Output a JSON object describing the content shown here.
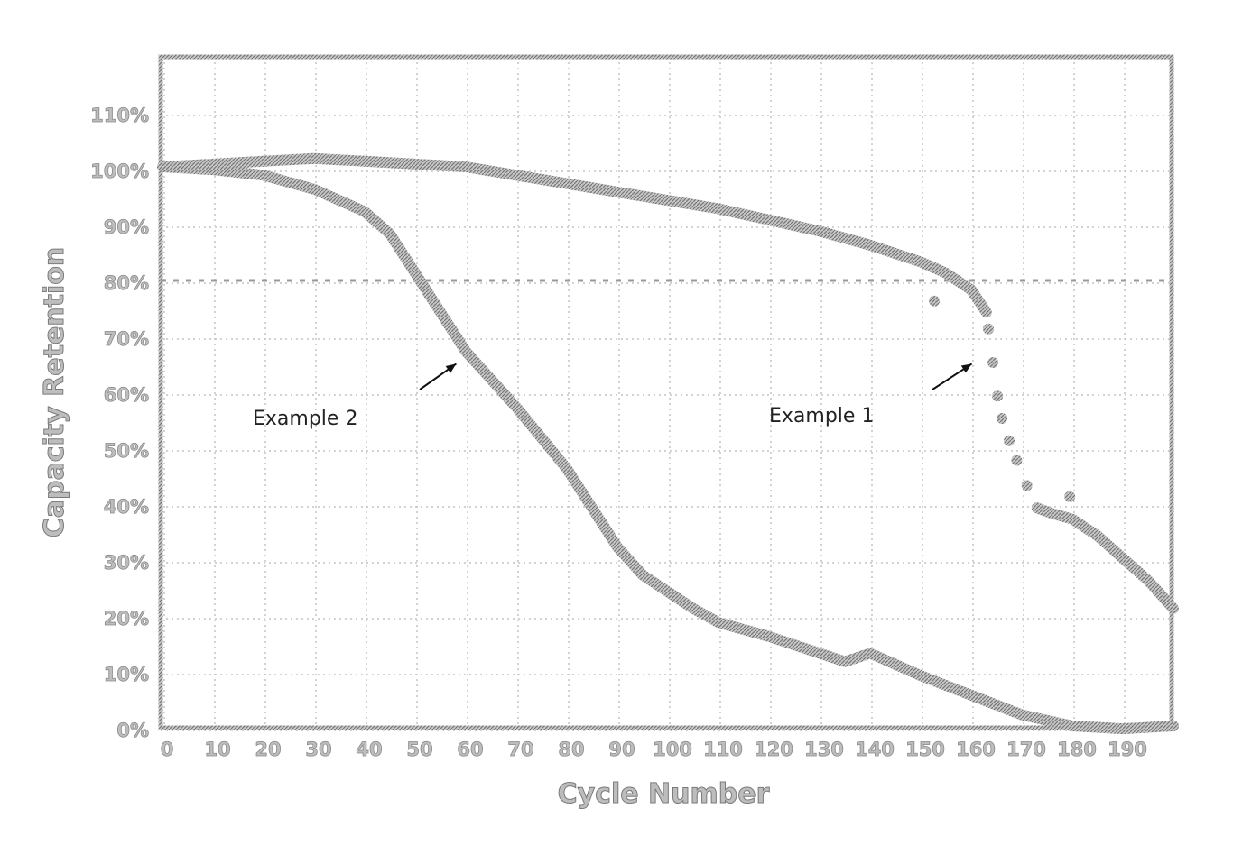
{
  "chart_data": {
    "type": "line",
    "title": "",
    "xlabel": "Cycle Number",
    "ylabel": "Capacity Retention",
    "xlim": [
      0,
      200
    ],
    "ylim": [
      0,
      120
    ],
    "x_ticks": [
      0,
      10,
      20,
      30,
      40,
      50,
      60,
      70,
      80,
      90,
      100,
      110,
      120,
      130,
      140,
      150,
      160,
      170,
      180,
      190
    ],
    "y_ticks": [
      0,
      10,
      20,
      30,
      40,
      50,
      60,
      70,
      80,
      90,
      100,
      110
    ],
    "y_tick_labels": [
      "0%",
      "10%",
      "20%",
      "30%",
      "40%",
      "50%",
      "60%",
      "70%",
      "80%",
      "90%",
      "100%",
      "110%"
    ],
    "grid": true,
    "reference_line": {
      "y": 80,
      "style": "dashed"
    },
    "series": [
      {
        "name": "Example 1",
        "x": [
          0,
          10,
          20,
          30,
          40,
          50,
          60,
          70,
          80,
          90,
          100,
          110,
          120,
          130,
          140,
          150,
          155,
          160,
          163
        ],
        "y": [
          100,
          100.5,
          101,
          101.5,
          101,
          100.5,
          100,
          98.5,
          97,
          95.5,
          94,
          92.5,
          90.5,
          88.5,
          86,
          83,
          81,
          78,
          74
        ],
        "scatter": {
          "x": [
            152.7,
            163.4,
            164.3,
            165.2,
            166.1,
            167.5,
            169,
            171,
            179.5
          ],
          "y": [
            76,
            71,
            65,
            59,
            55,
            51,
            47.5,
            43,
            41
          ]
        },
        "tail": {
          "x": [
            173,
            176,
            180,
            185,
            190,
            195,
            200
          ],
          "y": [
            39,
            38,
            37,
            34,
            30,
            26,
            21
          ]
        }
      },
      {
        "name": "Example 2",
        "x": [
          0,
          10,
          20,
          30,
          40,
          45,
          50,
          55,
          60,
          70,
          80,
          90,
          95,
          100,
          105,
          110,
          120,
          130,
          135,
          140,
          150,
          160,
          170,
          180,
          190,
          200
        ],
        "y": [
          100,
          99.5,
          98.5,
          96,
          92,
          88,
          81,
          74,
          67,
          57,
          46,
          32,
          27,
          24,
          21,
          18.5,
          16,
          13,
          11.5,
          13,
          9,
          5.5,
          2,
          0,
          -0.5,
          0
        ]
      }
    ],
    "annotations": [
      {
        "text": "Example 2",
        "points_to_cycle": 59,
        "points_to_value": 68
      },
      {
        "text": "Example 1",
        "points_to_cycle": 161,
        "points_to_value": 68
      }
    ]
  }
}
